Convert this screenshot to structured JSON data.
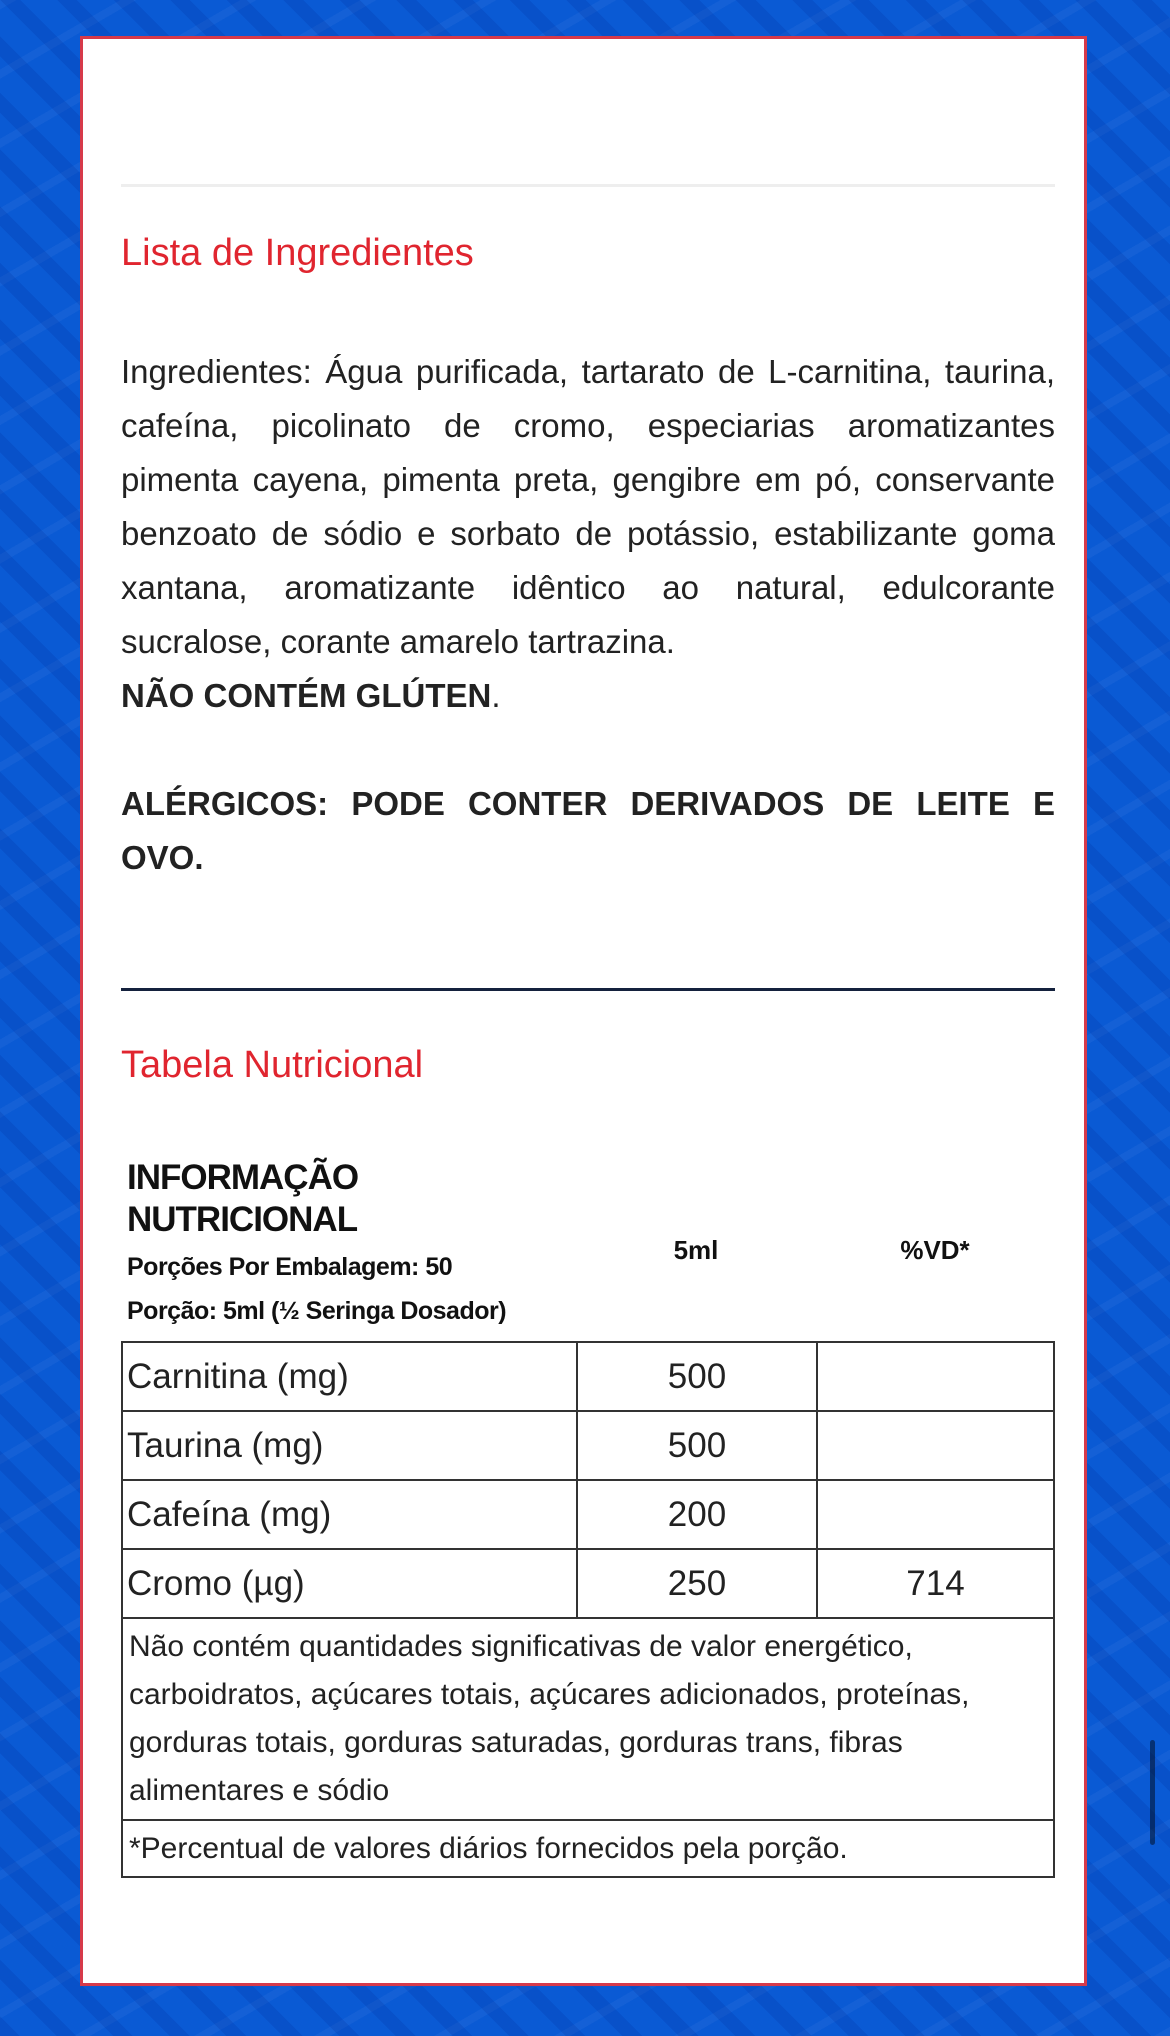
{
  "ingredients_section": {
    "heading": "Lista de Ingredientes",
    "text": "Ingredientes: Água purificada, tartarato de L-carnitina, taurina, cafeína, picolinato de cromo, especiarias aromatizantes pimenta cayena, pimenta preta, gengibre em pó, conservante benzoato de sódio e sorbato de potássio, estabilizante goma xantana, aromatizante idêntico ao natural, edulcorante sucralose, corante amarelo tartrazina.",
    "gluten": "NÃO CONTÉM GLÚTEN",
    "gluten_period": ".",
    "allergens": "ALÉRGICOS: PODE CONTER DERIVADOS DE LEITE E OVO."
  },
  "nutrition_section": {
    "heading": "Tabela Nutricional",
    "title_line1": "INFORMAÇÃO",
    "title_line2": "NUTRICIONAL",
    "servings": "Porções Por Embalagem: 50",
    "portion": "Porção: 5ml (½ Seringa Dosador)",
    "col_portion": "5ml",
    "col_vd": "%VD*",
    "rows": [
      {
        "name": "Carnitina (mg)",
        "value": "500",
        "vd": ""
      },
      {
        "name": "Taurina (mg)",
        "value": "500",
        "vd": ""
      },
      {
        "name": "Cafeína (mg)",
        "value": "200",
        "vd": ""
      },
      {
        "name": "Cromo (µg)",
        "value": "250",
        "vd": "714"
      }
    ],
    "note": "Não contém quantidades significativas de valor energético, carboidratos, açúcares totais, açúcares adicionados, proteínas, gorduras totais, gorduras saturadas, gorduras trans, fibras alimentares e sódio",
    "footnote": "*Percentual de valores diários fornecidos pela porção."
  },
  "colors": {
    "accent": "#e0252f",
    "background": "#0a5ad4",
    "card_border": "#d63a4a"
  }
}
